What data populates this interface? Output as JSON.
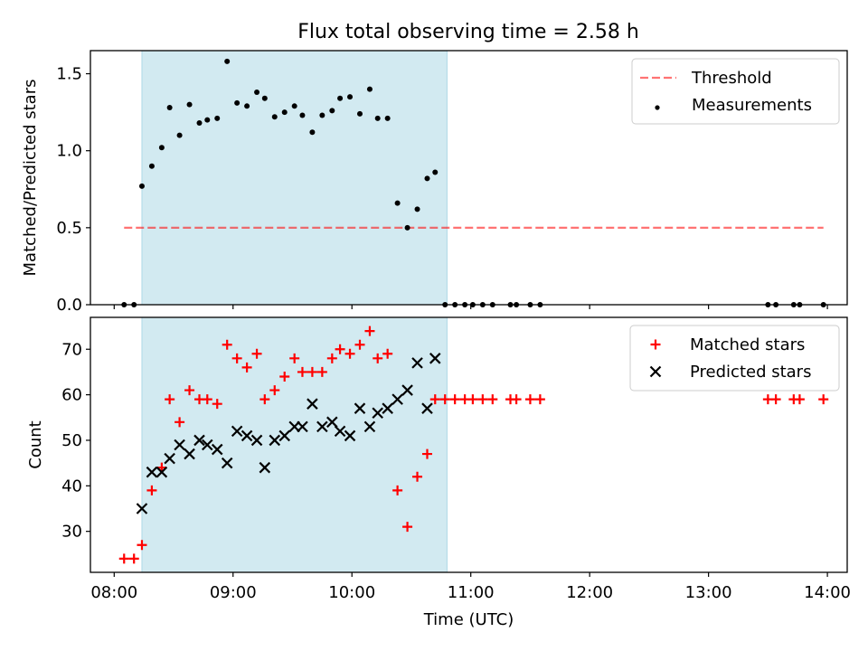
{
  "title": "Flux total observing time = 2.58 h",
  "chart_data": [
    {
      "type": "scatter",
      "ylabel": "Matched/Predicted stars",
      "xlabel": "",
      "x_range": [
        "07:48",
        "14:10"
      ],
      "ylim": [
        0,
        1.65
      ],
      "y_ticks": [
        0.0,
        0.5,
        1.0,
        1.5
      ],
      "y_tick_labels": [
        "0.0",
        "0.5",
        "1.0",
        "1.5"
      ],
      "x_ticks": [
        "08:00",
        "09:00",
        "10:00",
        "11:00",
        "12:00",
        "13:00",
        "14:00"
      ],
      "x_tick_labels_visible": false,
      "grid": false,
      "legend_position": "top-right",
      "shaded_interval": {
        "x": [
          "08:14",
          "10:48"
        ],
        "color": "#add8e6"
      },
      "threshold": {
        "name": "Threshold",
        "y": 0.5,
        "x": [
          "08:05",
          "13:58"
        ],
        "color": "#ff0000",
        "style": "dashed"
      },
      "series": [
        {
          "name": "Measurements",
          "color": "#000000",
          "marker": "dot",
          "points": [
            [
              "08:05",
              0.0
            ],
            [
              "08:10",
              0.0
            ],
            [
              "08:14",
              0.77
            ],
            [
              "08:19",
              0.9
            ],
            [
              "08:24",
              1.02
            ],
            [
              "08:28",
              1.28
            ],
            [
              "08:33",
              1.1
            ],
            [
              "08:38",
              1.3
            ],
            [
              "08:43",
              1.18
            ],
            [
              "08:47",
              1.2
            ],
            [
              "08:52",
              1.21
            ],
            [
              "08:57",
              1.58
            ],
            [
              "09:02",
              1.31
            ],
            [
              "09:07",
              1.29
            ],
            [
              "09:12",
              1.38
            ],
            [
              "09:16",
              1.34
            ],
            [
              "09:21",
              1.22
            ],
            [
              "09:26",
              1.25
            ],
            [
              "09:31",
              1.29
            ],
            [
              "09:35",
              1.23
            ],
            [
              "09:40",
              1.12
            ],
            [
              "09:45",
              1.23
            ],
            [
              "09:50",
              1.26
            ],
            [
              "09:54",
              1.34
            ],
            [
              "09:59",
              1.35
            ],
            [
              "10:04",
              1.24
            ],
            [
              "10:09",
              1.4
            ],
            [
              "10:13",
              1.21
            ],
            [
              "10:18",
              1.21
            ],
            [
              "10:23",
              0.66
            ],
            [
              "10:28",
              0.5
            ],
            [
              "10:33",
              0.62
            ],
            [
              "10:38",
              0.82
            ],
            [
              "10:42",
              0.86
            ],
            [
              "10:47",
              0.0
            ],
            [
              "10:52",
              0.0
            ],
            [
              "10:57",
              0.0
            ],
            [
              "11:01",
              0.0
            ],
            [
              "11:06",
              0.0
            ],
            [
              "11:11",
              0.0
            ],
            [
              "11:20",
              0.0
            ],
            [
              "11:23",
              0.0
            ],
            [
              "11:30",
              0.0
            ],
            [
              "11:35",
              0.0
            ],
            [
              "13:30",
              0.0
            ],
            [
              "13:34",
              0.0
            ],
            [
              "13:43",
              0.0
            ],
            [
              "13:46",
              0.0
            ],
            [
              "13:58",
              0.0
            ]
          ]
        }
      ]
    },
    {
      "type": "scatter",
      "ylabel": "Count",
      "xlabel": "Time (UTC)",
      "x_range": [
        "07:48",
        "14:10"
      ],
      "ylim": [
        21,
        77
      ],
      "y_ticks": [
        30,
        40,
        50,
        60,
        70
      ],
      "y_tick_labels": [
        "30",
        "40",
        "50",
        "60",
        "70"
      ],
      "x_ticks": [
        "08:00",
        "09:00",
        "10:00",
        "11:00",
        "12:00",
        "13:00",
        "14:00"
      ],
      "x_tick_labels": [
        "08:00",
        "09:00",
        "10:00",
        "11:00",
        "12:00",
        "13:00",
        "14:00"
      ],
      "grid": false,
      "legend_position": "top-right",
      "shaded_interval": {
        "x": [
          "08:14",
          "10:48"
        ],
        "color": "#add8e6"
      },
      "series": [
        {
          "name": "Matched stars",
          "color": "#ff0000",
          "marker": "plus",
          "points": [
            [
              "08:05",
              24
            ],
            [
              "08:10",
              24
            ],
            [
              "08:14",
              27
            ],
            [
              "08:19",
              39
            ],
            [
              "08:24",
              44
            ],
            [
              "08:28",
              59
            ],
            [
              "08:33",
              54
            ],
            [
              "08:38",
              61
            ],
            [
              "08:43",
              59
            ],
            [
              "08:47",
              59
            ],
            [
              "08:52",
              58
            ],
            [
              "08:57",
              71
            ],
            [
              "09:02",
              68
            ],
            [
              "09:07",
              66
            ],
            [
              "09:12",
              69
            ],
            [
              "09:16",
              59
            ],
            [
              "09:21",
              61
            ],
            [
              "09:26",
              64
            ],
            [
              "09:31",
              68
            ],
            [
              "09:35",
              65
            ],
            [
              "09:40",
              65
            ],
            [
              "09:45",
              65
            ],
            [
              "09:50",
              68
            ],
            [
              "09:54",
              70
            ],
            [
              "09:59",
              69
            ],
            [
              "10:04",
              71
            ],
            [
              "10:09",
              74
            ],
            [
              "10:13",
              68
            ],
            [
              "10:18",
              69
            ],
            [
              "10:23",
              39
            ],
            [
              "10:28",
              31
            ],
            [
              "10:33",
              42
            ],
            [
              "10:38",
              47
            ],
            [
              "10:42",
              59
            ],
            [
              "10:47",
              59
            ],
            [
              "10:52",
              59
            ],
            [
              "10:57",
              59
            ],
            [
              "11:01",
              59
            ],
            [
              "11:06",
              59
            ],
            [
              "11:11",
              59
            ],
            [
              "11:20",
              59
            ],
            [
              "11:23",
              59
            ],
            [
              "11:30",
              59
            ],
            [
              "11:35",
              59
            ],
            [
              "13:30",
              59
            ],
            [
              "13:34",
              59
            ],
            [
              "13:43",
              59
            ],
            [
              "13:46",
              59
            ],
            [
              "13:58",
              59
            ]
          ]
        },
        {
          "name": "Predicted stars",
          "color": "#000000",
          "marker": "x",
          "points": [
            [
              "08:14",
              35
            ],
            [
              "08:19",
              43
            ],
            [
              "08:24",
              43
            ],
            [
              "08:28",
              46
            ],
            [
              "08:33",
              49
            ],
            [
              "08:38",
              47
            ],
            [
              "08:43",
              50
            ],
            [
              "08:47",
              49
            ],
            [
              "08:52",
              48
            ],
            [
              "08:57",
              45
            ],
            [
              "09:02",
              52
            ],
            [
              "09:07",
              51
            ],
            [
              "09:12",
              50
            ],
            [
              "09:16",
              44
            ],
            [
              "09:21",
              50
            ],
            [
              "09:26",
              51
            ],
            [
              "09:31",
              53
            ],
            [
              "09:35",
              53
            ],
            [
              "09:40",
              58
            ],
            [
              "09:45",
              53
            ],
            [
              "09:50",
              54
            ],
            [
              "09:54",
              52
            ],
            [
              "09:59",
              51
            ],
            [
              "10:04",
              57
            ],
            [
              "10:09",
              53
            ],
            [
              "10:13",
              56
            ],
            [
              "10:18",
              57
            ],
            [
              "10:23",
              59
            ],
            [
              "10:28",
              61
            ],
            [
              "10:33",
              67
            ],
            [
              "10:38",
              57
            ],
            [
              "10:42",
              68
            ]
          ]
        }
      ]
    }
  ]
}
